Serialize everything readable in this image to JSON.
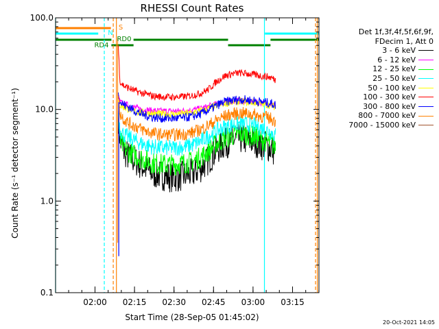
{
  "chart_data": {
    "type": "line",
    "title": "RHESSI Count Rates",
    "xlabel": "Start Time (28-Sep-05 01:45:02)",
    "ylabel": "Count Rate (s⁻¹ detector segment⁻¹)",
    "yscale": "log",
    "ylim": [
      0.1,
      100.0
    ],
    "y_ticks": [
      {
        "value": 0.1,
        "label": "0.1"
      },
      {
        "value": 1.0,
        "label": "1.0"
      },
      {
        "value": 10.0,
        "label": "10.0"
      },
      {
        "value": 100.0,
        "label": "100.0"
      }
    ],
    "xlim_minutes": [
      0,
      100
    ],
    "x_ticks": [
      {
        "minute": 14.97,
        "label": "02:00"
      },
      {
        "minute": 29.97,
        "label": "02:15"
      },
      {
        "minute": 44.97,
        "label": "02:30"
      },
      {
        "minute": 59.97,
        "label": "02:45"
      },
      {
        "minute": 74.97,
        "label": "03:00"
      },
      {
        "minute": 89.97,
        "label": "03:15"
      }
    ],
    "legend_header": [
      "Det 1f,3f,4f,5f,6f,9f,",
      "FDecim 1, Att 0"
    ],
    "series": [
      {
        "name": "3 - 6 keV",
        "color": "#000000",
        "x": [
          23.8,
          24.5,
          26,
          28,
          30,
          33,
          37,
          41,
          45,
          49,
          52,
          55,
          58,
          61,
          64,
          67,
          70,
          73,
          76,
          78,
          80,
          82,
          83.5
        ],
        "values": [
          8,
          4.5,
          3.5,
          3.0,
          2.8,
          2.4,
          2.0,
          1.9,
          1.8,
          1.9,
          2.0,
          2.3,
          2.8,
          3.6,
          4.2,
          4.6,
          4.8,
          4.6,
          4.4,
          4.1,
          4.0,
          3.7,
          3.4
        ]
      },
      {
        "name": "6 - 12 keV",
        "color": "#ff00ff",
        "x": [
          23.8,
          24.5,
          26,
          28,
          30,
          33,
          37,
          41,
          45,
          49,
          52,
          55,
          58,
          61,
          64,
          67,
          70,
          73,
          76,
          78,
          80,
          82,
          83.5
        ],
        "values": [
          14,
          12,
          11.5,
          11,
          10.5,
          10,
          9.7,
          9.6,
          9.6,
          9.7,
          9.9,
          10.2,
          10.8,
          11.5,
          12,
          12.3,
          12.5,
          12.3,
          12,
          11.8,
          11.6,
          11.4,
          11
        ]
      },
      {
        "name": "12 - 25 keV",
        "color": "#00ff00",
        "x": [
          23.8,
          24.5,
          26,
          28,
          30,
          33,
          37,
          41,
          45,
          49,
          52,
          55,
          58,
          61,
          64,
          67,
          70,
          73,
          76,
          78,
          80,
          82,
          83.5
        ],
        "values": [
          7,
          4.5,
          3.8,
          3.4,
          3.2,
          2.9,
          2.6,
          2.5,
          2.5,
          2.6,
          2.7,
          3.0,
          3.5,
          4.2,
          4.8,
          5.2,
          5.4,
          5.3,
          5.0,
          4.7,
          4.5,
          4.2,
          3.9
        ]
      },
      {
        "name": "25 - 50 keV",
        "color": "#00ffff",
        "x": [
          23.8,
          24.5,
          26,
          28,
          30,
          33,
          37,
          41,
          45,
          49,
          52,
          55,
          58,
          61,
          64,
          67,
          70,
          73,
          76,
          78,
          80,
          82,
          83.5
        ],
        "values": [
          9,
          6,
          5.3,
          4.9,
          4.6,
          4.2,
          3.9,
          3.8,
          3.8,
          3.9,
          4.1,
          4.5,
          5.1,
          5.8,
          6.4,
          6.8,
          7.0,
          6.9,
          6.6,
          6.3,
          6.0,
          5.6,
          5.2
        ]
      },
      {
        "name": "50 - 100 keV",
        "color": "#ffff00",
        "x": [
          23.8,
          24.5,
          26,
          28,
          30,
          33,
          37,
          41,
          45,
          49,
          52,
          55,
          58,
          61,
          64,
          67,
          70,
          73,
          76,
          78,
          80,
          82,
          83.5
        ],
        "values": [
          12,
          11,
          10.5,
          10,
          9.6,
          9.2,
          9.0,
          8.9,
          8.9,
          9.0,
          9.2,
          9.6,
          10.2,
          11,
          11.6,
          12,
          12.2,
          12,
          11.8,
          11.5,
          11.3,
          11,
          10.6
        ]
      },
      {
        "name": "100 - 300 keV",
        "color": "#ff0000",
        "x": [
          23.8,
          24.5,
          26,
          28,
          30,
          33,
          37,
          41,
          45,
          49,
          52,
          55,
          58,
          61,
          64,
          67,
          70,
          73,
          76,
          78,
          80,
          82,
          83.5
        ],
        "values": [
          50,
          20,
          18,
          17,
          16,
          15,
          14,
          13.7,
          13.6,
          13.8,
          14.2,
          15,
          16.5,
          20,
          23,
          24.5,
          25,
          24.5,
          23.8,
          23.2,
          22.8,
          22.2,
          21
        ]
      },
      {
        "name": "300 - 800 keV",
        "color": "#0000ff",
        "x": [
          23.8,
          24.5,
          26,
          28,
          30,
          33,
          37,
          41,
          45,
          49,
          52,
          55,
          58,
          61,
          64,
          67,
          70,
          73,
          76,
          78,
          80,
          82,
          83.5
        ],
        "values": [
          16,
          12,
          11.2,
          10.5,
          9.7,
          8.8,
          8.2,
          8.0,
          8.0,
          8.1,
          8.4,
          8.9,
          9.8,
          11,
          12,
          12.6,
          12.9,
          12.7,
          12.4,
          12.1,
          11.9,
          11.6,
          11.2
        ]
      },
      {
        "name": "800 - 7000 keV",
        "color": "#ff8000",
        "x": [
          23.8,
          24.5,
          26,
          28,
          30,
          33,
          37,
          41,
          45,
          49,
          52,
          55,
          58,
          61,
          64,
          67,
          70,
          73,
          76,
          78,
          80,
          82,
          83.5
        ],
        "values": [
          14,
          9,
          7.8,
          7.0,
          6.6,
          6.0,
          5.5,
          5.3,
          5.3,
          5.4,
          5.6,
          6.0,
          6.7,
          7.6,
          8.4,
          8.9,
          9.1,
          9.0,
          8.7,
          8.4,
          8.2,
          7.9,
          7.4
        ]
      },
      {
        "name": "7000 - 15000 keV",
        "color": "#a0522d",
        "x": [],
        "values": []
      }
    ],
    "annotations": [
      {
        "label": "S",
        "color": "#ff8000",
        "minute": 21.7
      },
      {
        "label": "N",
        "color": "#00ffff",
        "minute": 16.5
      },
      {
        "label": "RD4",
        "color": "#008000",
        "minute": 15.5
      },
      {
        "label": "RD0",
        "color": "#008000",
        "minute": 24.2
      }
    ],
    "flag_bars": [
      {
        "color": "#ff8000",
        "segments": [
          [
            0,
            21.0
          ]
        ],
        "level": 1
      },
      {
        "color": "#00ffff",
        "segments": [
          [
            0,
            16.2
          ],
          [
            79.5,
            100
          ]
        ],
        "level": 2
      },
      {
        "color": "#008000",
        "segments": [
          [
            0,
            21.2
          ],
          [
            29.6,
            65.5
          ],
          [
            81.6,
            100
          ]
        ],
        "level": 3
      },
      {
        "color": "#008000",
        "segments": [
          [
            21.2,
            29.6
          ],
          [
            65.5,
            81.6
          ]
        ],
        "level": 4
      }
    ],
    "vertical_lines": [
      {
        "minute": 0.0,
        "color": "#00ffff",
        "dashed": false
      },
      {
        "minute": 18.5,
        "color": "#00ffff",
        "dashed": true
      },
      {
        "minute": 21.9,
        "color": "#ff8000",
        "dashed": true
      },
      {
        "minute": 23.1,
        "color": "#ff8000",
        "dashed": false
      },
      {
        "minute": 79.3,
        "color": "#00ffff",
        "dashed": false
      },
      {
        "minute": 98.7,
        "color": "#ff8000",
        "dashed": true
      },
      {
        "minute": 99.4,
        "color": "#ff8000",
        "dashed": false
      }
    ],
    "timestamp": "20-Oct-2021 14:05"
  }
}
